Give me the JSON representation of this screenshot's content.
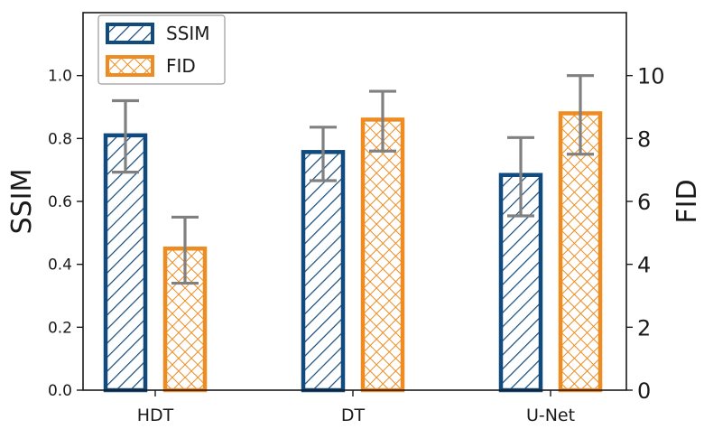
{
  "chart_data": {
    "type": "bar",
    "categories": [
      "HDT",
      "DT",
      "U-Net"
    ],
    "series": [
      {
        "name": "SSIM",
        "axis": "left",
        "values": [
          0.81,
          0.757,
          0.684
        ],
        "error_low": [
          0.693,
          0.666,
          0.554
        ],
        "error_high": [
          0.92,
          0.836,
          0.803
        ],
        "color": "#114a7c",
        "pattern": "diagonal-hatch"
      },
      {
        "name": "FID",
        "axis": "right",
        "values": [
          4.5,
          8.6,
          8.8
        ],
        "error_low": [
          3.4,
          7.6,
          7.5
        ],
        "error_high": [
          5.5,
          9.5,
          10.0
        ],
        "color": "#ee8c21",
        "pattern": "cross-hatch"
      }
    ],
    "ylabel": "SSIM",
    "ylabel_right": "FID",
    "ylim": [
      0,
      1.2
    ],
    "ylim_right": [
      0,
      12
    ],
    "yticks": [
      "0.0",
      "0.2",
      "0.4",
      "0.6",
      "0.8",
      "1.0"
    ],
    "yticks_right": [
      "0",
      "2",
      "4",
      "6",
      "8",
      "10"
    ],
    "error_bar_color": "#808080",
    "legend_position": "top-left",
    "grid": false
  }
}
